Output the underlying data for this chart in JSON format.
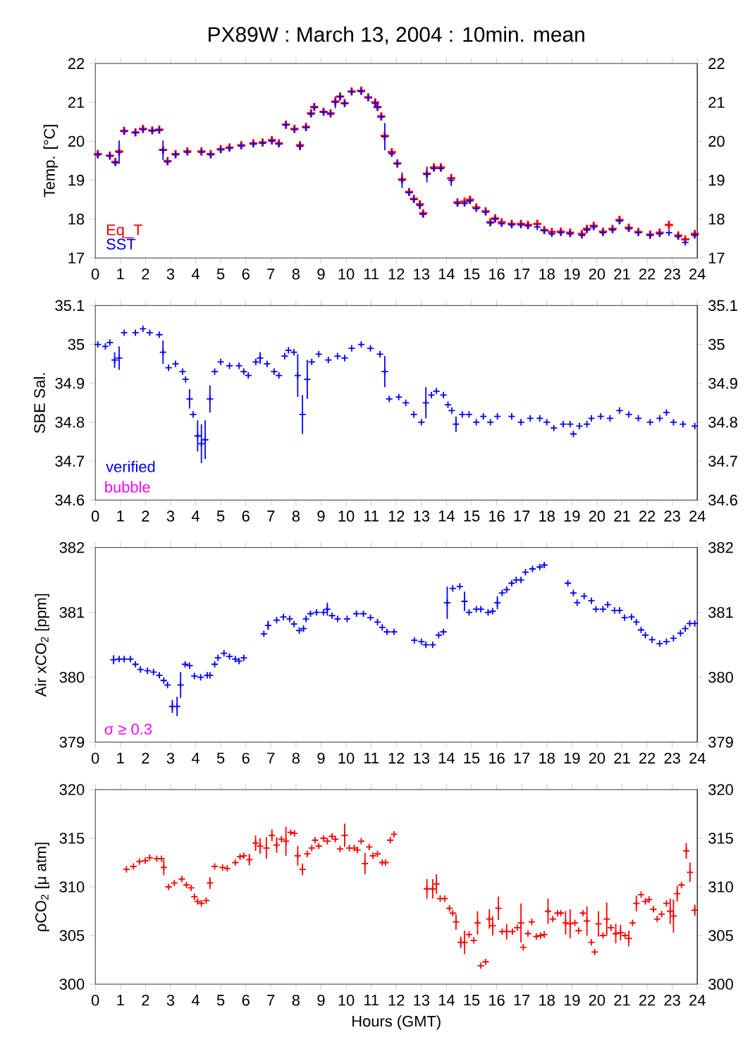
{
  "chart_data": [
    {
      "type": "scatter",
      "title": "PX89W : March 13, 2004 : 10min. mean",
      "ylabel": "Temp. [°C]",
      "marker": "cross",
      "legend": "bottom left",
      "xlim": [
        0,
        24
      ],
      "xticks": [
        0,
        1,
        2,
        3,
        4,
        5,
        6,
        7,
        8,
        9,
        10,
        11,
        12,
        13,
        14,
        15,
        16,
        17,
        18,
        19,
        20,
        21,
        22,
        23,
        24
      ],
      "ylim": [
        17,
        22
      ],
      "yticks": [
        17,
        18,
        19,
        20,
        21,
        22
      ],
      "y2lim": [
        17,
        22
      ],
      "y2ticks": [
        17,
        18,
        19,
        20,
        21,
        22
      ],
      "x": [
        0.1,
        0.58,
        0.8,
        0.95,
        1.15,
        1.6,
        1.9,
        2.27,
        2.55,
        2.7,
        2.88,
        3.2,
        3.67,
        4.23,
        4.6,
        5.0,
        5.35,
        5.82,
        6.3,
        6.67,
        7.04,
        7.32,
        7.6,
        7.94,
        8.16,
        8.4,
        8.6,
        8.73,
        9.1,
        9.38,
        9.57,
        9.76,
        9.94,
        10.22,
        10.6,
        10.88,
        11.16,
        11.25,
        11.4,
        11.54,
        11.82,
        12.04,
        12.23,
        12.51,
        12.7,
        12.94,
        13.07,
        13.22,
        13.5,
        13.78,
        14.19,
        14.44,
        14.72,
        14.94,
        15.19,
        15.56,
        15.75,
        15.94,
        16.2,
        16.6,
        16.97,
        17.25,
        17.62,
        17.9,
        18.2,
        18.56,
        18.93,
        19.4,
        19.6,
        19.87,
        20.24,
        20.62,
        20.9,
        21.27,
        21.65,
        22.12,
        22.5,
        22.87,
        23.24,
        23.52,
        23.9
      ],
      "series": [
        {
          "name": "Eq_T",
          "color": "#ff0000",
          "values": [
            19.67,
            19.63,
            19.47,
            19.74,
            20.27,
            20.23,
            20.32,
            20.28,
            20.3,
            19.78,
            19.49,
            19.67,
            19.74,
            19.74,
            19.67,
            19.8,
            19.84,
            19.9,
            19.95,
            19.97,
            20.03,
            19.95,
            20.43,
            20.32,
            19.9,
            20.37,
            20.72,
            20.88,
            20.76,
            20.72,
            21.02,
            21.15,
            20.98,
            21.28,
            21.3,
            21.13,
            21.0,
            20.88,
            20.64,
            20.14,
            19.72,
            19.43,
            19.02,
            18.7,
            18.52,
            18.38,
            18.15,
            19.17,
            19.33,
            19.33,
            19.05,
            18.43,
            18.45,
            18.5,
            18.3,
            18.2,
            17.92,
            18.02,
            17.92,
            17.88,
            17.88,
            17.85,
            17.88,
            17.72,
            17.67,
            17.68,
            17.65,
            17.62,
            17.75,
            17.83,
            17.68,
            17.75,
            17.98,
            17.78,
            17.67,
            17.6,
            17.65,
            17.85,
            17.58,
            17.48,
            17.62
          ]
        },
        {
          "name": "SST",
          "color": "#0000ff",
          "values": [
            19.65,
            19.62,
            19.45,
            19.72,
            20.25,
            20.22,
            20.3,
            20.27,
            20.28,
            19.77,
            19.47,
            19.65,
            19.72,
            19.72,
            19.65,
            19.78,
            19.82,
            19.88,
            19.93,
            19.95,
            20.0,
            19.93,
            20.42,
            20.3,
            19.87,
            20.35,
            20.7,
            20.87,
            20.75,
            20.7,
            21.0,
            21.15,
            20.97,
            21.27,
            21.28,
            21.12,
            20.98,
            20.87,
            20.62,
            20.12,
            19.68,
            19.42,
            19.0,
            18.68,
            18.5,
            18.35,
            18.12,
            19.15,
            19.3,
            19.3,
            19.0,
            18.4,
            18.4,
            18.47,
            18.27,
            18.18,
            17.9,
            18.0,
            17.88,
            17.85,
            17.85,
            17.82,
            17.8,
            17.7,
            17.62,
            17.65,
            17.62,
            17.58,
            17.72,
            17.8,
            17.65,
            17.72,
            17.95,
            17.75,
            17.65,
            17.58,
            17.62,
            17.65,
            17.55,
            17.4,
            17.58
          ],
          "errors": [
            null,
            null,
            null,
            0.3,
            null,
            null,
            null,
            null,
            null,
            0.25,
            null,
            null,
            null,
            null,
            null,
            null,
            null,
            null,
            null,
            null,
            null,
            null,
            0.1,
            null,
            0.1,
            null,
            null,
            null,
            null,
            null,
            0.15,
            null,
            null,
            null,
            null,
            null,
            null,
            null,
            null,
            0.35,
            null,
            null,
            0.2,
            null,
            null,
            0.1,
            null,
            0.2,
            null,
            null,
            0.15,
            null,
            null,
            null,
            null,
            null,
            null,
            null,
            null,
            null,
            null,
            null,
            null,
            null,
            null,
            null,
            null,
            null,
            null,
            null,
            null,
            null,
            null,
            null,
            null,
            null,
            null,
            null,
            null,
            null,
            null
          ]
        }
      ]
    },
    {
      "type": "scatter",
      "ylabel": "SBE Sal.",
      "marker": "cross",
      "legend": "bottom left",
      "annotations": [
        "bubble"
      ],
      "xlim": [
        0,
        24
      ],
      "xticks": [
        0,
        1,
        2,
        3,
        4,
        5,
        6,
        7,
        8,
        9,
        10,
        11,
        12,
        13,
        14,
        15,
        16,
        17,
        18,
        19,
        20,
        21,
        22,
        23,
        24
      ],
      "ylim": [
        34.6,
        35.1
      ],
      "yticks": [
        34.6,
        34.7,
        34.8,
        34.9,
        35,
        35.1
      ],
      "y2lim": [
        34.6,
        35.1
      ],
      "y2ticks": [
        34.6,
        34.7,
        34.8,
        34.9,
        35,
        35.1
      ],
      "x": [
        0.1,
        0.4,
        0.58,
        0.77,
        0.95,
        1.15,
        1.6,
        1.9,
        2.17,
        2.55,
        2.7,
        2.92,
        3.2,
        3.48,
        3.6,
        3.76,
        3.9,
        4.08,
        4.23,
        4.38,
        4.57,
        4.76,
        5.0,
        5.35,
        5.73,
        5.92,
        6.1,
        6.4,
        6.57,
        6.85,
        7.13,
        7.32,
        7.55,
        7.7,
        7.92,
        8.07,
        8.26,
        8.45,
        8.63,
        8.91,
        9.29,
        9.66,
        9.94,
        10.22,
        10.6,
        10.97,
        11.35,
        11.54,
        11.72,
        12.1,
        12.38,
        12.7,
        13.0,
        13.18,
        13.4,
        13.6,
        13.88,
        14.06,
        14.21,
        14.38,
        14.63,
        14.9,
        15.19,
        15.47,
        15.75,
        16.03,
        16.6,
        16.97,
        17.34,
        17.72,
        18.0,
        18.28,
        18.65,
        18.93,
        19.06,
        19.3,
        19.6,
        19.78,
        20.15,
        20.52,
        20.9,
        21.27,
        21.65,
        22.12,
        22.5,
        22.77,
        23.05,
        23.43,
        23.9
      ],
      "series": [
        {
          "name": "verified",
          "color": "#0000ff",
          "values": [
            35.0,
            34.995,
            35.005,
            34.96,
            34.965,
            35.03,
            35.03,
            35.04,
            35.03,
            35.025,
            34.98,
            34.94,
            34.95,
            34.93,
            34.91,
            34.86,
            34.82,
            34.765,
            34.745,
            34.755,
            34.86,
            34.93,
            34.955,
            34.945,
            34.945,
            34.93,
            34.92,
            34.955,
            34.965,
            34.95,
            34.93,
            34.92,
            34.97,
            34.985,
            34.98,
            34.92,
            34.82,
            34.91,
            34.955,
            34.975,
            34.96,
            34.97,
            34.965,
            34.99,
            35.0,
            34.99,
            34.975,
            34.93,
            34.86,
            34.865,
            34.85,
            34.82,
            34.8,
            34.85,
            34.87,
            34.88,
            34.87,
            34.845,
            34.83,
            34.795,
            34.82,
            34.82,
            34.8,
            34.815,
            34.8,
            34.815,
            34.815,
            34.8,
            34.81,
            34.81,
            34.8,
            34.785,
            34.795,
            34.795,
            34.77,
            34.79,
            34.795,
            34.81,
            34.815,
            34.81,
            34.83,
            34.82,
            34.81,
            34.8,
            34.81,
            34.825,
            34.8,
            34.795,
            34.79
          ],
          "errors": [
            null,
            null,
            null,
            0.02,
            0.03,
            null,
            null,
            null,
            null,
            null,
            0.03,
            null,
            null,
            null,
            null,
            0.025,
            null,
            0.04,
            0.05,
            0.05,
            0.035,
            null,
            null,
            null,
            null,
            null,
            null,
            null,
            0.015,
            null,
            null,
            null,
            null,
            null,
            null,
            0.055,
            0.05,
            0.05,
            null,
            null,
            null,
            null,
            null,
            null,
            null,
            null,
            null,
            0.04,
            null,
            null,
            null,
            null,
            null,
            0.04,
            null,
            null,
            null,
            null,
            null,
            0.02,
            null,
            null,
            null,
            null,
            null,
            null,
            null,
            null,
            null,
            null,
            null,
            null,
            null,
            null,
            null,
            null,
            null,
            null,
            null,
            null,
            null,
            null,
            null,
            null,
            null,
            null,
            null,
            null,
            null
          ]
        }
      ]
    },
    {
      "type": "scatter",
      "ylabel": "Air xCO$_{2}$ [ppm]",
      "marker": "cross",
      "annotations": [
        "σ ≥ 0.3"
      ],
      "xlim": [
        0,
        24
      ],
      "xticks": [
        0,
        1,
        2,
        3,
        4,
        5,
        6,
        7,
        8,
        9,
        10,
        11,
        12,
        13,
        14,
        15,
        16,
        17,
        18,
        19,
        20,
        21,
        22,
        23,
        24
      ],
      "ylim": [
        379,
        382
      ],
      "yticks": [
        379,
        380,
        381,
        382
      ],
      "y2lim": [
        379,
        382
      ],
      "y2ticks": [
        379,
        380,
        381,
        382
      ],
      "x": [
        0.73,
        0.95,
        1.15,
        1.4,
        1.6,
        1.8,
        2.08,
        2.32,
        2.55,
        2.73,
        2.88,
        3.07,
        3.26,
        3.4,
        3.58,
        3.76,
        3.95,
        4.2,
        4.46,
        4.57,
        4.76,
        4.89,
        5.13,
        5.35,
        5.58,
        5.73,
        5.92,
        6.72,
        6.89,
        7.23,
        7.5,
        7.75,
        7.92,
        8.13,
        8.3,
        8.4,
        8.58,
        8.82,
        9.1,
        9.25,
        9.44,
        9.66,
        10.04,
        10.41,
        10.69,
        10.97,
        11.25,
        11.44,
        11.63,
        11.91,
        12.72,
        13.0,
        13.18,
        13.45,
        13.69,
        13.88,
        14.03,
        14.25,
        14.53,
        14.72,
        14.9,
        15.19,
        15.37,
        15.66,
        15.84,
        16.03,
        16.22,
        16.4,
        16.6,
        16.78,
        16.97,
        17.15,
        17.43,
        17.72,
        17.9,
        18.84,
        19.06,
        19.21,
        19.49,
        19.78,
        19.96,
        20.24,
        20.43,
        20.7,
        20.9,
        21.1,
        21.38,
        21.57,
        21.76,
        21.93,
        22.2,
        22.5,
        22.77,
        23.05,
        23.33,
        23.52,
        23.7,
        23.9
      ],
      "series": [
        {
          "color": "#0000ff",
          "values": [
            380.27,
            380.28,
            380.28,
            380.28,
            380.2,
            380.12,
            380.1,
            380.08,
            380.03,
            379.95,
            379.88,
            379.55,
            379.55,
            379.88,
            380.2,
            380.18,
            380.02,
            380.0,
            380.03,
            380.03,
            380.2,
            380.3,
            380.37,
            380.32,
            380.28,
            380.25,
            380.3,
            380.67,
            380.8,
            380.88,
            380.93,
            380.9,
            380.82,
            380.72,
            380.75,
            380.9,
            380.98,
            381.0,
            381.0,
            381.05,
            380.95,
            380.9,
            380.9,
            380.98,
            380.98,
            380.92,
            380.85,
            380.77,
            380.7,
            380.7,
            380.57,
            380.55,
            380.5,
            380.5,
            380.65,
            380.7,
            381.15,
            381.37,
            381.4,
            381.17,
            381.0,
            381.05,
            381.05,
            381.0,
            381.02,
            381.15,
            381.3,
            381.35,
            381.45,
            381.5,
            381.5,
            381.62,
            381.67,
            381.7,
            381.73,
            381.45,
            381.3,
            381.15,
            381.25,
            381.18,
            381.05,
            381.05,
            381.12,
            381.03,
            381.03,
            380.92,
            380.93,
            380.85,
            380.73,
            380.65,
            380.58,
            380.52,
            380.55,
            380.6,
            380.68,
            380.75,
            380.83,
            380.83
          ],
          "errors": [
            0.07,
            null,
            null,
            null,
            null,
            null,
            null,
            null,
            null,
            null,
            null,
            0.1,
            0.15,
            0.2,
            null,
            null,
            null,
            null,
            null,
            null,
            null,
            null,
            null,
            null,
            null,
            null,
            null,
            null,
            0.07,
            null,
            null,
            null,
            null,
            null,
            null,
            null,
            null,
            null,
            null,
            0.1,
            null,
            null,
            null,
            null,
            null,
            null,
            null,
            null,
            null,
            null,
            null,
            null,
            null,
            null,
            null,
            null,
            0.25,
            null,
            null,
            0.15,
            null,
            null,
            null,
            null,
            null,
            0.1,
            null,
            null,
            null,
            null,
            null,
            null,
            null,
            null,
            null,
            null,
            null,
            null,
            null,
            null,
            null,
            null,
            null,
            null,
            null,
            null,
            null,
            null,
            null,
            null,
            null,
            null,
            null,
            null,
            null,
            null,
            null,
            null
          ]
        }
      ]
    },
    {
      "type": "scatter",
      "ylabel": "ρCO$_{2}$ [μ atm]",
      "xlabel": "Hours (GMT)",
      "marker": "cross",
      "xlim": [
        0,
        24
      ],
      "xticks": [
        0,
        1,
        2,
        3,
        4,
        5,
        6,
        7,
        8,
        9,
        10,
        11,
        12,
        13,
        14,
        15,
        16,
        17,
        18,
        19,
        20,
        21,
        22,
        23,
        24
      ],
      "ylim": [
        300,
        320
      ],
      "yticks": [
        300,
        305,
        310,
        315,
        320
      ],
      "y2lim": [
        300,
        320
      ],
      "y2ticks": [
        300,
        305,
        310,
        315,
        320
      ],
      "x": [
        1.24,
        1.52,
        1.76,
        1.99,
        2.17,
        2.45,
        2.64,
        2.73,
        2.92,
        3.15,
        3.45,
        3.63,
        3.82,
        3.95,
        4.08,
        4.23,
        4.42,
        4.57,
        4.76,
        5.07,
        5.26,
        5.58,
        5.77,
        5.92,
        6.14,
        6.39,
        6.57,
        6.82,
        7.04,
        7.23,
        7.42,
        7.6,
        7.79,
        7.94,
        8.07,
        8.26,
        8.45,
        8.63,
        8.76,
        8.91,
        9.1,
        9.25,
        9.44,
        9.57,
        9.76,
        9.94,
        10.13,
        10.32,
        10.45,
        10.6,
        10.75,
        10.92,
        11.07,
        11.25,
        11.44,
        11.57,
        11.76,
        11.91,
        13.22,
        13.45,
        13.6,
        13.75,
        13.93,
        14.12,
        14.25,
        14.38,
        14.57,
        14.72,
        14.9,
        15.09,
        15.24,
        15.37,
        15.56,
        15.71,
        15.84,
        16.07,
        16.22,
        16.4,
        16.63,
        16.82,
        16.97,
        17.06,
        17.25,
        17.4,
        17.58,
        17.75,
        17.9,
        18.05,
        18.24,
        18.43,
        18.56,
        18.75,
        18.93,
        19.12,
        19.27,
        19.44,
        19.6,
        19.78,
        19.91,
        20.06,
        20.24,
        20.39,
        20.56,
        20.75,
        20.94,
        21.12,
        21.27,
        21.42,
        21.57,
        21.76,
        21.93,
        22.08,
        22.25,
        22.4,
        22.58,
        22.77,
        22.92,
        23.05,
        23.2,
        23.37,
        23.56,
        23.71,
        23.9
      ],
      "series": [
        {
          "color": "#ff0000",
          "values": [
            311.8,
            312.1,
            312.6,
            312.7,
            313.0,
            312.9,
            312.9,
            312.0,
            310.0,
            310.4,
            310.8,
            310.2,
            309.9,
            309.0,
            308.5,
            308.3,
            308.6,
            310.4,
            312.1,
            312.0,
            311.9,
            312.5,
            313.1,
            313.2,
            312.8,
            314.5,
            314.2,
            314.0,
            315.3,
            314.3,
            314.9,
            314.7,
            315.6,
            315.5,
            313.2,
            311.8,
            313.4,
            314.0,
            314.8,
            314.2,
            315.0,
            314.7,
            315.2,
            314.9,
            313.9,
            315.3,
            314.0,
            314.0,
            313.8,
            314.7,
            312.4,
            314.1,
            313.2,
            313.4,
            312.5,
            312.5,
            314.8,
            315.4,
            309.8,
            309.8,
            310.3,
            308.8,
            308.8,
            307.8,
            307.3,
            306.4,
            304.3,
            304.3,
            305.1,
            304.5,
            306.3,
            301.9,
            302.3,
            306.7,
            306.0,
            307.8,
            305.4,
            305.4,
            305.4,
            305.8,
            306.3,
            303.8,
            305.2,
            306.4,
            304.9,
            305.0,
            305.1,
            307.5,
            306.7,
            307.3,
            307.3,
            306.3,
            306.2,
            306.3,
            305.5,
            307.3,
            306.5,
            304.3,
            303.3,
            306.2,
            305.0,
            306.7,
            305.8,
            305.2,
            305.3,
            305.0,
            304.7,
            306.3,
            308.3,
            309.2,
            308.5,
            308.7,
            307.7,
            306.7,
            307.2,
            308.3,
            307.5,
            307.0,
            309.3,
            310.2,
            313.7,
            311.5,
            307.6
          ],
          "errors": [
            null,
            null,
            null,
            null,
            null,
            null,
            null,
            0.8,
            null,
            null,
            null,
            null,
            null,
            null,
            null,
            null,
            null,
            0.6,
            null,
            null,
            null,
            null,
            null,
            null,
            0.6,
            0.8,
            0.8,
            1.1,
            0.6,
            0.8,
            null,
            1.5,
            null,
            null,
            1.0,
            0.6,
            null,
            null,
            null,
            null,
            null,
            null,
            null,
            null,
            null,
            1.2,
            null,
            null,
            null,
            null,
            1.1,
            null,
            null,
            null,
            null,
            null,
            null,
            null,
            1.0,
            1.0,
            1.0,
            null,
            null,
            null,
            null,
            0.8,
            0.6,
            1.2,
            null,
            null,
            1.2,
            null,
            null,
            1.0,
            1.0,
            1.2,
            null,
            0.8,
            null,
            null,
            2.0,
            null,
            null,
            null,
            null,
            null,
            null,
            1.3,
            null,
            null,
            null,
            1.2,
            1.5,
            null,
            null,
            null,
            1.5,
            null,
            null,
            1.3,
            null,
            1.7,
            null,
            1.0,
            0.8,
            null,
            0.8,
            null,
            0.8,
            null,
            null,
            null,
            null,
            null,
            null,
            null,
            1.3,
            1.7,
            0.8,
            null,
            0.8,
            1.0,
            0.6
          ]
        }
      ]
    }
  ]
}
